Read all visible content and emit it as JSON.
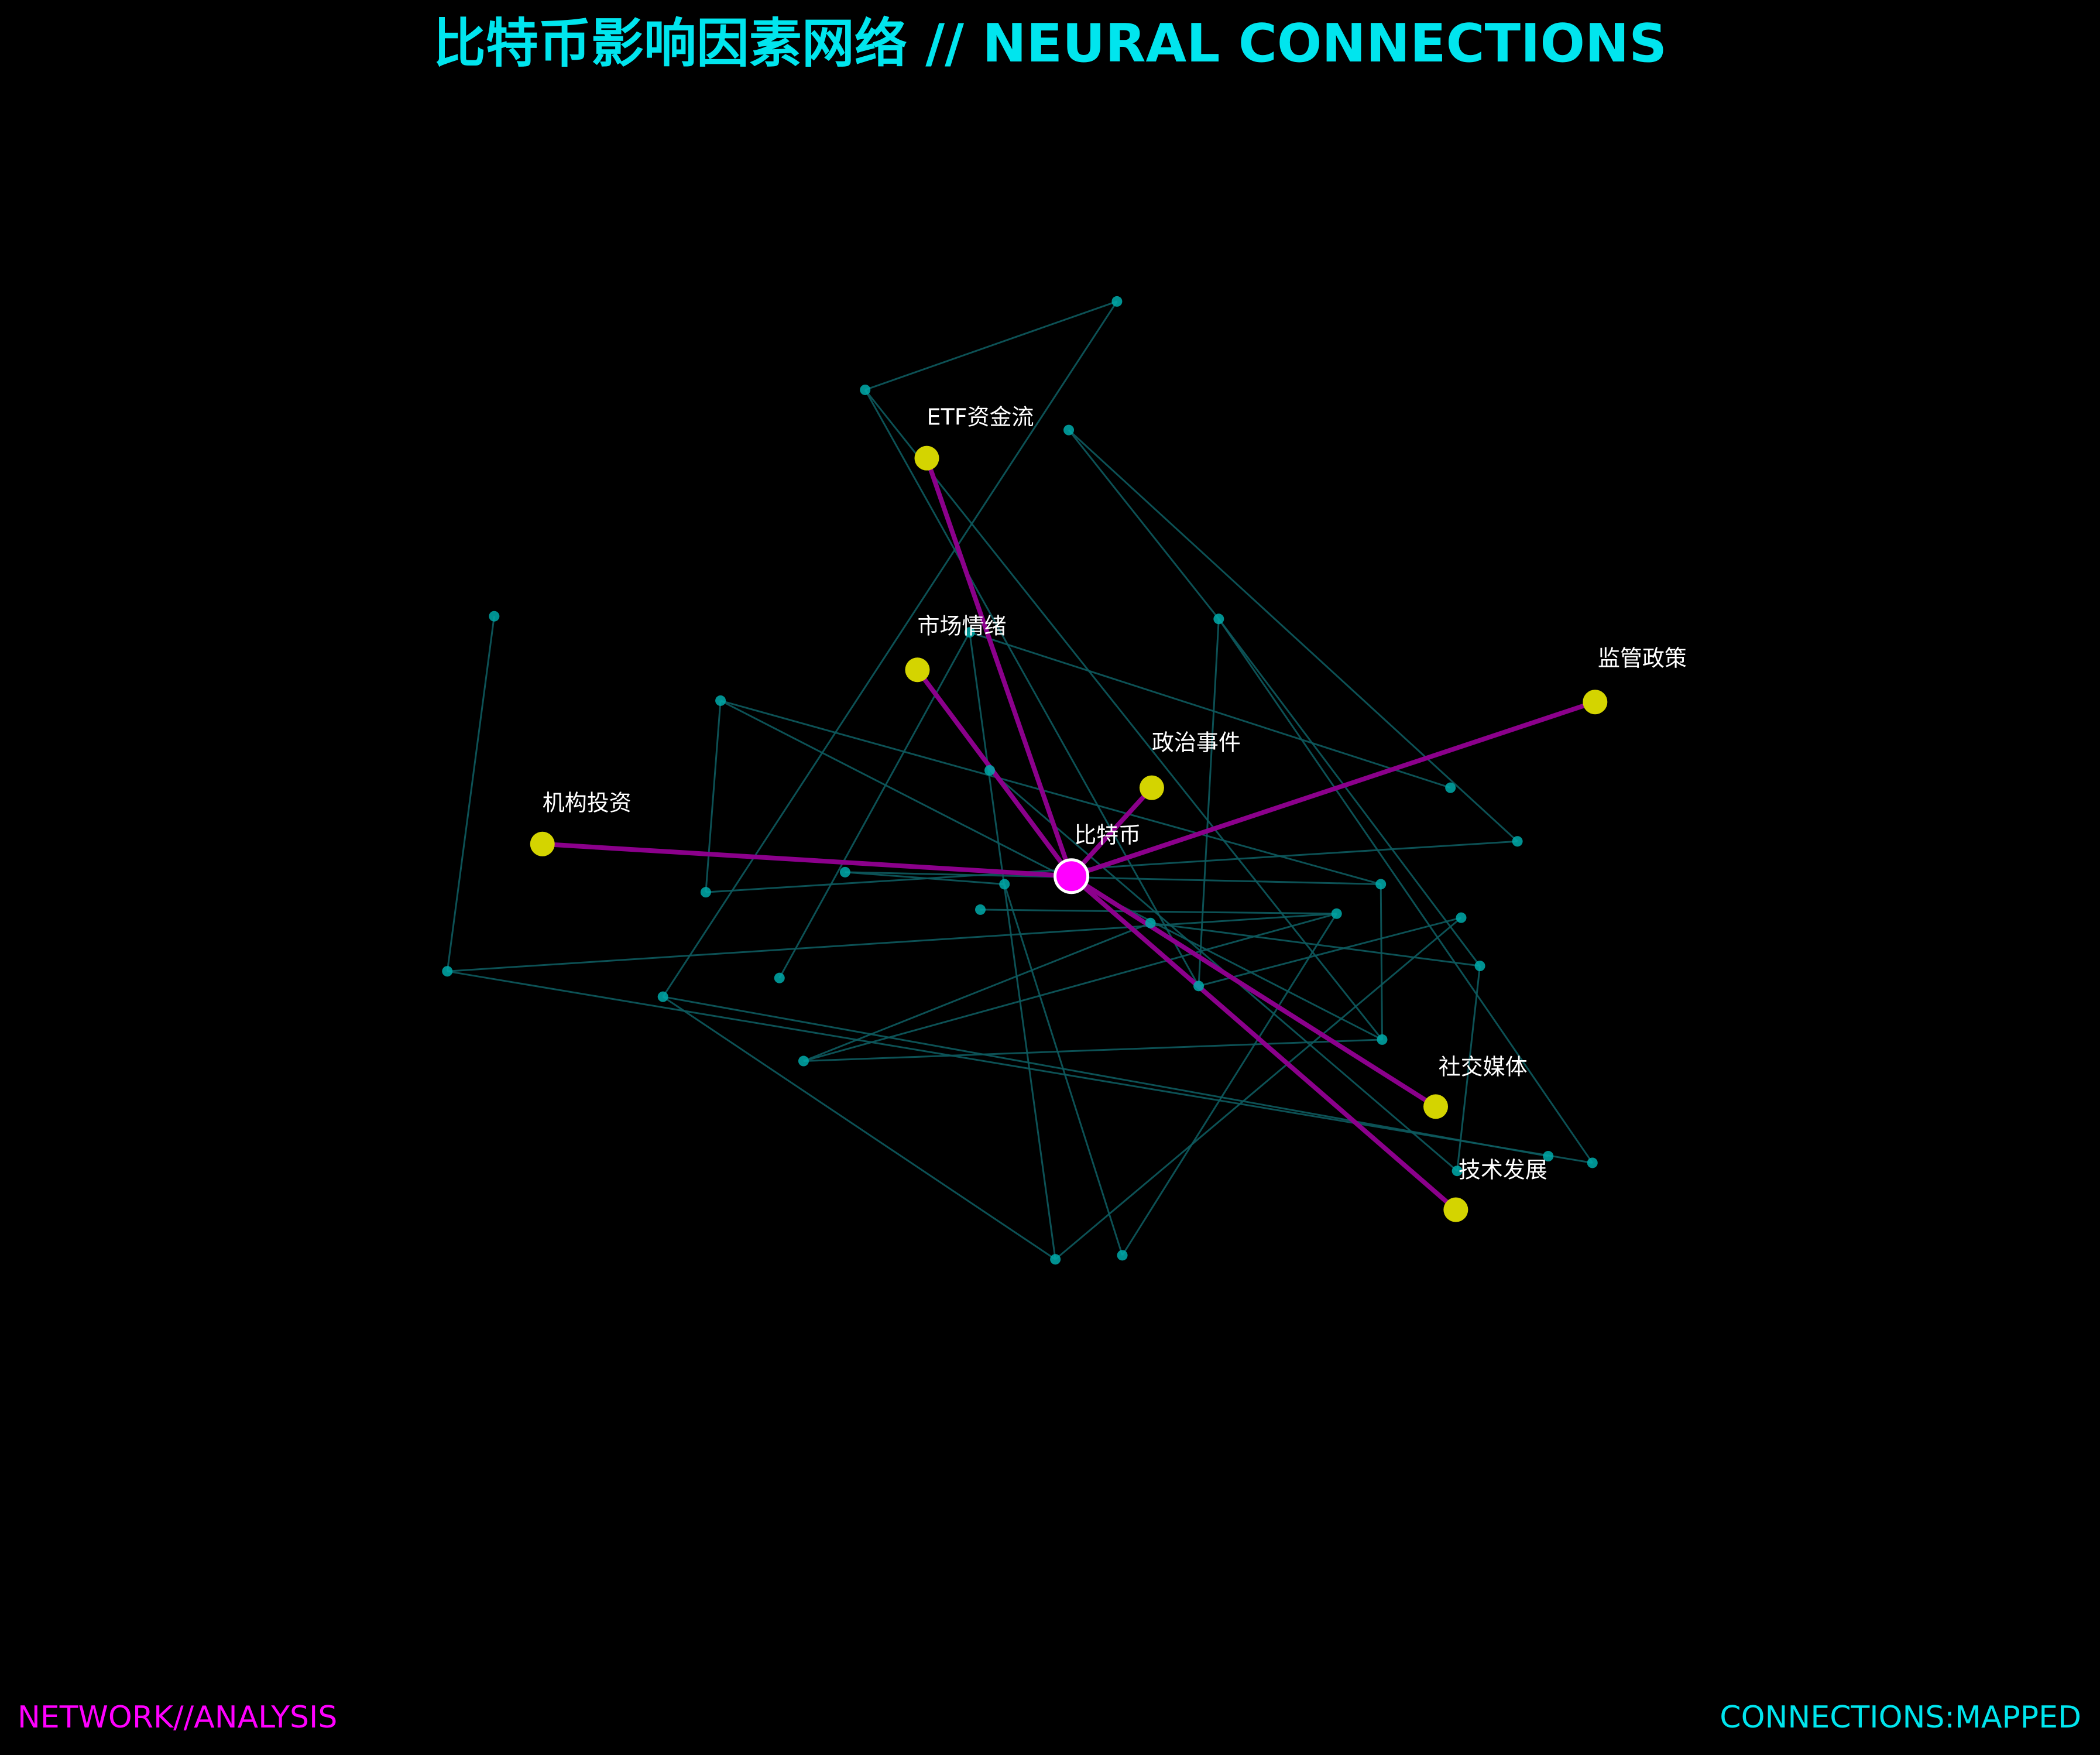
{
  "title": "比特币影响因素网络 // NEURAL CONNECTIONS",
  "footer": {
    "left": "NETWORK//ANALYSIS",
    "right": "CONNECTIONS:MAPPED"
  },
  "colors": {
    "background": "#000000",
    "title": "#00e5ee",
    "center_node": "#ff00ff",
    "center_stroke": "#ffffff",
    "factor_node": "#d4d400",
    "factor_edge": "#8b008b",
    "minor_node": "#00aaaa",
    "minor_edge": "#0d5a5e",
    "label_text": "#ffffff",
    "footer_left": "#ff00ff",
    "footer_right": "#00e5ee"
  },
  "center": {
    "label": "比特币"
  },
  "factors": [
    {
      "label": "ETF资金流"
    },
    {
      "label": "市场情绪"
    },
    {
      "label": "监管政策"
    },
    {
      "label": "政治事件"
    },
    {
      "label": "机构投资"
    },
    {
      "label": "社交媒体"
    },
    {
      "label": "技术发展"
    }
  ]
}
